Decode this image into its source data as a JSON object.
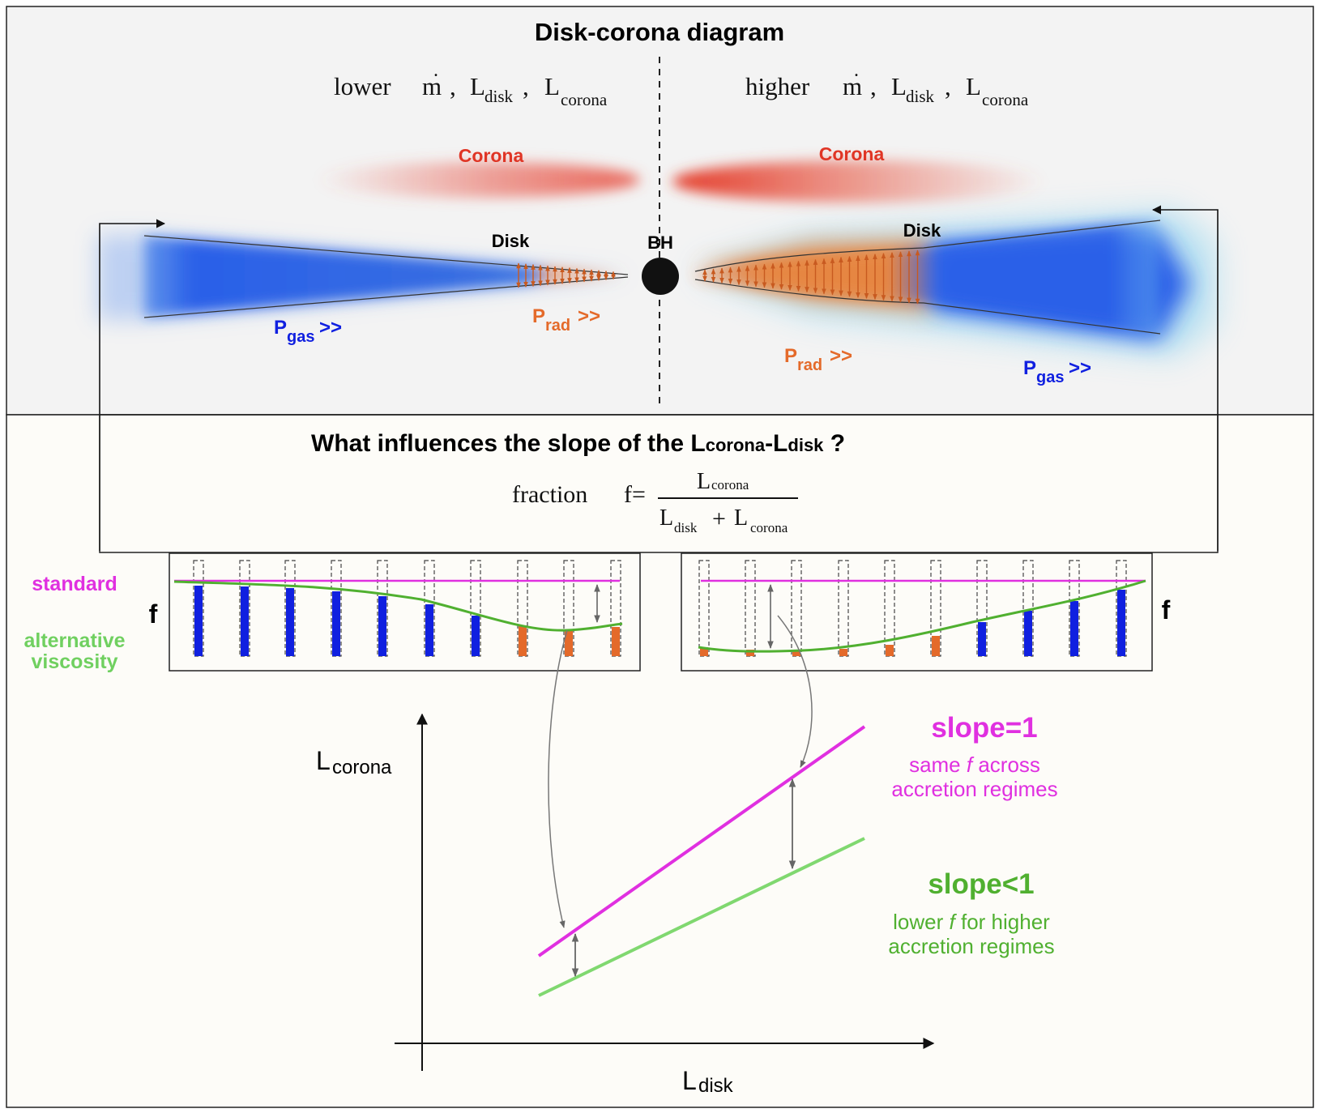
{
  "top": {
    "title": "Disk-corona diagram",
    "left_header": {
      "lower": "lower",
      "mdot": "m",
      "l1": "L",
      "l1_sub": "disk",
      "l2": "L",
      "l2_sub": "corona"
    },
    "right_header": {
      "higher": "higher",
      "mdot": "m",
      "l1": "L",
      "l1_sub": "disk",
      "l2": "L",
      "l2_sub": "corona"
    },
    "corona_label": "Corona",
    "disk_label": "Disk",
    "bh_label": "BH",
    "p_gas": {
      "main": "P",
      "sub": "gas",
      "arrows": ">>"
    },
    "p_rad": {
      "main": "P",
      "sub": "rad",
      "arrows": ">>"
    }
  },
  "bottom": {
    "question": {
      "pre": "What influences the slope of the L",
      "sub1": "corona",
      "mid": "-L",
      "sub2": "disk",
      "post": " ?"
    },
    "fraction": {
      "word": "fraction",
      "f_eq": "f=",
      "num": "L",
      "num_sub": "corona",
      "den1": "L",
      "den1_sub": "disk",
      "plus": "+",
      "den2": "L",
      "den2_sub": "corona"
    },
    "legend": {
      "standard": "standard",
      "alt1": "alternative",
      "alt2": "viscosity"
    },
    "f_label": "f",
    "axes": {
      "y": "L",
      "y_sub": "corona",
      "x": "L",
      "x_sub": "disk"
    },
    "slope1": {
      "title": "slope=1",
      "line1_a": "same ",
      "line1_f": "f",
      "line1_b": " across",
      "line2": "accretion regimes"
    },
    "slope_lt1": {
      "title": "slope<1",
      "line1_a": "lower ",
      "line1_f": "f",
      "line1_b": " for higher",
      "line2": "accretion regimes"
    }
  },
  "colors": {
    "magenta": "#e030e0",
    "green": "#50b030",
    "light_green": "#70d060",
    "blue": "#1020e0",
    "orange": "#e46a2a",
    "red": "#e03525"
  }
}
